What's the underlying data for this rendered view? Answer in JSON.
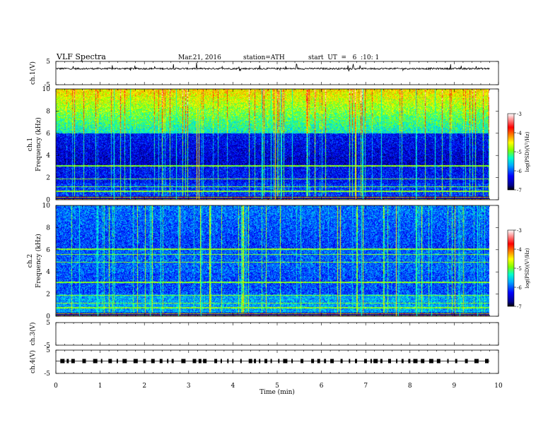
{
  "header": {
    "title": "VLF Spectra",
    "date": "Mar.21, 2016",
    "station": "station=ATH",
    "start": "start  UT  =   6  :10: 1"
  },
  "chart_data": [
    {
      "type": "line",
      "panel": "ch1-waveform",
      "ylabel": "ch.1(V)",
      "ylim": [
        -5,
        5
      ],
      "y_ticks": [
        "5",
        "-5"
      ],
      "baseline_y": 1.9,
      "noise_amplitude": 0.35,
      "line_color": "#000000"
    },
    {
      "type": "heatmap",
      "panel": "ch1-spectrogram",
      "ylabel_line1": "ch.1",
      "ylabel_line2": "Frequency  (kHz)",
      "ylim": [
        0,
        10
      ],
      "y_ticks": [
        "0",
        "2",
        "4",
        "6",
        "8",
        "10"
      ],
      "colorbar_label": "log(PSD)(V²/Hz)",
      "colorbar_range": [
        -7,
        -3
      ],
      "colorbar_ticks": [
        "-3",
        "-4",
        "-5",
        "-6",
        "-7"
      ]
    },
    {
      "type": "heatmap",
      "panel": "ch2-spectrogram",
      "ylabel_line1": "ch.2",
      "ylabel_line2": "Frequency  (kHz)",
      "ylim": [
        0,
        10
      ],
      "y_ticks": [
        "0",
        "2",
        "4",
        "6",
        "8",
        "10"
      ],
      "colorbar_label": "log(PSD)(V²/Hz)",
      "colorbar_range": [
        -7,
        -3
      ],
      "colorbar_ticks": [
        "-3",
        "-4",
        "-5",
        "-6",
        "-7"
      ]
    },
    {
      "type": "line",
      "panel": "ch3-waveform",
      "ylabel": "ch.3(V)",
      "ylim": [
        -5,
        5
      ],
      "y_ticks": [
        "5",
        "-5"
      ]
    },
    {
      "type": "line",
      "panel": "ch4-waveform",
      "ylabel": "ch.4(V)",
      "ylim": [
        -5,
        5
      ],
      "y_ticks": [
        "5",
        "-5"
      ],
      "signal_level": 0.3,
      "line_color": "#000000"
    }
  ],
  "x_axis": {
    "label": "Time  (min)",
    "xlim": [
      0,
      10
    ],
    "ticks": [
      "0",
      "1",
      "2",
      "3",
      "4",
      "5",
      "6",
      "7",
      "8",
      "9",
      "10"
    ],
    "data_end": 9.8
  },
  "colormap": [
    "#000000",
    "#00008b",
    "#0000ff",
    "#00aaff",
    "#00ffcc",
    "#80ff00",
    "#ffff00",
    "#ff8000",
    "#ff0000",
    "#ffffff"
  ]
}
